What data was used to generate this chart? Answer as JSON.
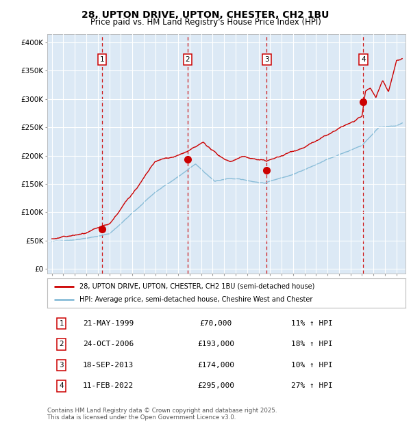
{
  "title_line1": "28, UPTON DRIVE, UPTON, CHESTER, CH2 1BU",
  "title_line2": "Price paid vs. HM Land Registry's House Price Index (HPI)",
  "fig_bg_color": "#ffffff",
  "plot_bg_color": "#dce9f5",
  "sale_color": "#cc0000",
  "hpi_color": "#89bdd8",
  "vline_color": "#cc0000",
  "yticks": [
    0,
    50000,
    100000,
    150000,
    200000,
    250000,
    300000,
    350000,
    400000
  ],
  "ytick_labels": [
    "£0",
    "£50K",
    "£100K",
    "£150K",
    "£200K",
    "£250K",
    "£300K",
    "£350K",
    "£400K"
  ],
  "xmin": 1994.6,
  "xmax": 2025.8,
  "ymin": -8000,
  "ymax": 415000,
  "sale_dates": [
    1999.38,
    2006.81,
    2013.71,
    2022.12
  ],
  "sale_prices": [
    70000,
    193000,
    174000,
    295000
  ],
  "sale_labels": [
    "1",
    "2",
    "3",
    "4"
  ],
  "legend_sale": "28, UPTON DRIVE, UPTON, CHESTER, CH2 1BU (semi-detached house)",
  "legend_hpi": "HPI: Average price, semi-detached house, Cheshire West and Chester",
  "table_entries": [
    {
      "label": "1",
      "date": "21-MAY-1999",
      "price": "£70,000",
      "note": "11% ↑ HPI"
    },
    {
      "label": "2",
      "date": "24-OCT-2006",
      "price": "£193,000",
      "note": "18% ↑ HPI"
    },
    {
      "label": "3",
      "date": "18-SEP-2013",
      "price": "£174,000",
      "note": "10% ↑ HPI"
    },
    {
      "label": "4",
      "date": "11-FEB-2022",
      "price": "£295,000",
      "note": "27% ↑ HPI"
    }
  ],
  "footer": "Contains HM Land Registry data © Crown copyright and database right 2025.\nThis data is licensed under the Open Government Licence v3.0."
}
